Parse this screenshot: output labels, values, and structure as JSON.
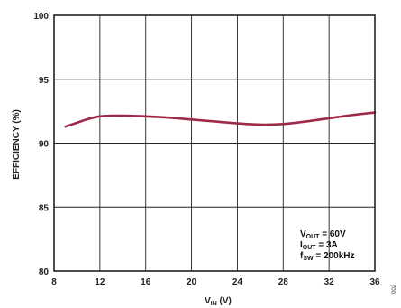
{
  "chart_data": {
    "type": "line",
    "xlabel": {
      "main": "V",
      "sub": "IN",
      "unit": " (V)"
    },
    "ylabel": "EFFICIENCY (%)",
    "xlim": [
      8,
      36
    ],
    "ylim": [
      80,
      100
    ],
    "xticks": [
      "8",
      "12",
      "16",
      "20",
      "24",
      "28",
      "32",
      "36"
    ],
    "yticks": [
      "100",
      "95",
      "90",
      "85",
      "80"
    ],
    "grid": true,
    "line_color": "#9e2a4a",
    "series": [
      {
        "x": [
          9,
          10,
          11,
          12,
          13,
          14,
          16,
          18,
          20,
          22,
          24,
          26,
          28,
          30,
          32,
          34,
          36
        ],
        "y": [
          91.3,
          91.6,
          91.9,
          92.1,
          92.15,
          92.15,
          92.1,
          92.0,
          91.85,
          91.7,
          91.55,
          91.45,
          91.5,
          91.7,
          91.95,
          92.2,
          92.4
        ]
      }
    ],
    "annotations": [
      {
        "main": "V",
        "sub": "OUT",
        "rest": " = 60V"
      },
      {
        "main": "I",
        "sub": "OUT",
        "rest": " = 3A"
      },
      {
        "main": "f",
        "sub": "SW",
        "rest": " = 200kHz"
      }
    ],
    "figure_id": "002"
  }
}
